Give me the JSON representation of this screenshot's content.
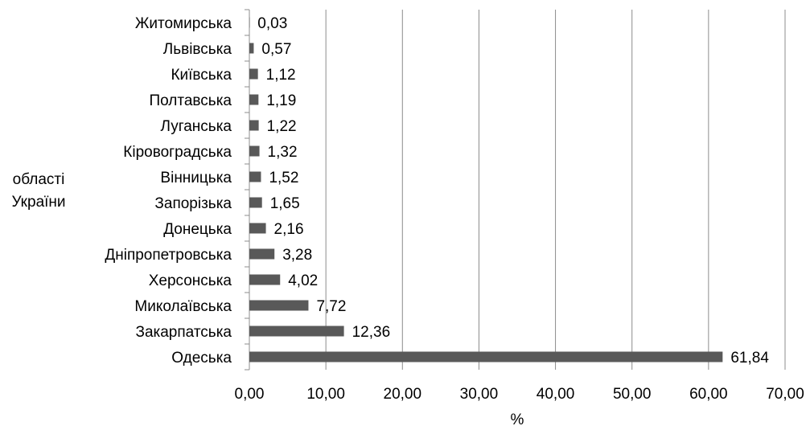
{
  "chart_data": {
    "type": "bar",
    "orientation": "horizontal",
    "ylabel": "області України",
    "xlabel": "%",
    "xlim": [
      0,
      70
    ],
    "x_ticks": [
      "0,00",
      "10,00",
      "20,00",
      "30,00",
      "40,00",
      "50,00",
      "60,00",
      "70,00"
    ],
    "grid": true,
    "legend": "none",
    "bar_color": "#595959",
    "categories": [
      "Житомирська",
      "Львівська",
      "Київська",
      "Полтавська",
      "Луганська",
      "Кіровоградська",
      "Вінницька",
      "Запорізька",
      "Донецька",
      "Дніпропетровська",
      "Херсонська",
      "Миколаївська",
      "Закарпатська",
      "Одеська"
    ],
    "values": [
      0.03,
      0.57,
      1.12,
      1.19,
      1.22,
      1.32,
      1.52,
      1.65,
      2.16,
      3.28,
      4.02,
      7.72,
      12.36,
      61.84
    ],
    "data_labels": [
      "0,03",
      "0,57",
      "1,12",
      "1,19",
      "1,22",
      "1,32",
      "1,52",
      "1,65",
      "2,16",
      "3,28",
      "4,02",
      "7,72",
      "12,36",
      "61,84"
    ]
  }
}
